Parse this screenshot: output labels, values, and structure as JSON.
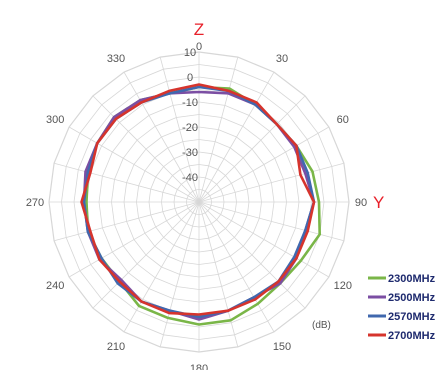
{
  "chart_data": {
    "type": "polar-line",
    "unit": "(dB)",
    "radial_range": [
      -50,
      10
    ],
    "radial_ticks": [
      10,
      0,
      -10,
      -20,
      -30,
      -40
    ],
    "angle_ticks": [
      0,
      30,
      60,
      90,
      120,
      150,
      180,
      210,
      240,
      270,
      300,
      330
    ],
    "axis_letters": {
      "top": "Z",
      "right": "Y"
    },
    "colors": {
      "axis_letter": "#e8202a",
      "grid": "#d7d7d7"
    },
    "legend_position": "bottom-right",
    "angles": [
      0,
      15,
      30,
      45,
      60,
      75,
      90,
      105,
      120,
      135,
      150,
      165,
      180,
      195,
      210,
      225,
      240,
      255,
      270,
      285,
      300,
      315,
      330,
      345
    ],
    "series": [
      {
        "name": "2300MHz",
        "color": "#7ab648",
        "values": [
          -4,
          -3,
          -5,
          -6,
          -5,
          -3,
          -2,
          0,
          -3,
          -4,
          -3,
          -1,
          -1,
          -2,
          -2,
          -5,
          -5,
          -4,
          -5,
          -4,
          -3,
          -2,
          -3,
          -5
        ]
      },
      {
        "name": "2500MHz",
        "color": "#7b4ea3",
        "values": [
          -6,
          -5,
          -5,
          -6,
          -6,
          -6,
          -4,
          -6,
          -5,
          -4,
          -6,
          -5,
          -3,
          -5,
          -4,
          -6,
          -4,
          -4,
          -4,
          -3,
          -3,
          -2,
          -3,
          -5
        ]
      },
      {
        "name": "2570MHz",
        "color": "#4068ae",
        "values": [
          -4,
          -4,
          -5,
          -6,
          -5,
          -5,
          -4,
          -6,
          -6,
          -5,
          -6,
          -5,
          -4,
          -5,
          -4,
          -4,
          -5,
          -4,
          -4,
          -4,
          -3,
          -3,
          -4,
          -5
        ]
      },
      {
        "name": "2700MHz",
        "color": "#d6342d",
        "values": [
          -3,
          -4,
          -4,
          -6,
          -5,
          -8,
          -4,
          -5,
          -5,
          -5,
          -5,
          -5,
          -5,
          -4,
          -4,
          -5,
          -4,
          -5,
          -3,
          -5,
          -3,
          -3,
          -4,
          -4
        ]
      }
    ]
  }
}
